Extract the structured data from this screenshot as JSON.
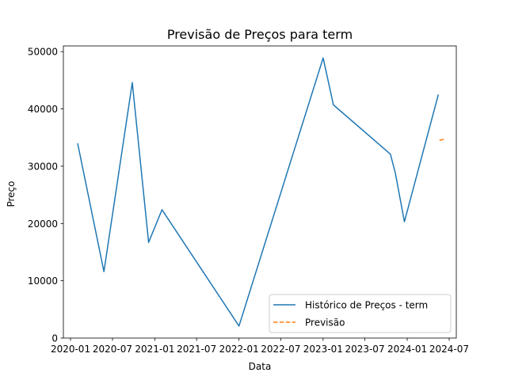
{
  "chart_data": {
    "type": "line",
    "title": "Previsão de Preços para term",
    "xlabel": "Data",
    "ylabel": "Preço",
    "xlim": [
      "2019-12-01",
      "2024-08-01"
    ],
    "ylim": [
      0,
      51000
    ],
    "x_ticks": [
      {
        "date": "2020-01-01",
        "label": "2020-01"
      },
      {
        "date": "2020-07-01",
        "label": "2020-07"
      },
      {
        "date": "2021-01-01",
        "label": "2021-01"
      },
      {
        "date": "2021-07-01",
        "label": "2021-07"
      },
      {
        "date": "2022-01-01",
        "label": "2022-01"
      },
      {
        "date": "2022-07-01",
        "label": "2022-07"
      },
      {
        "date": "2023-01-01",
        "label": "2023-01"
      },
      {
        "date": "2023-07-01",
        "label": "2023-07"
      },
      {
        "date": "2024-01-01",
        "label": "2024-01"
      },
      {
        "date": "2024-07-01",
        "label": "2024-07"
      }
    ],
    "y_ticks": [
      {
        "value": 0,
        "label": "0"
      },
      {
        "value": 10000,
        "label": "10000"
      },
      {
        "value": 20000,
        "label": "20000"
      },
      {
        "value": 30000,
        "label": "30000"
      },
      {
        "value": 40000,
        "label": "40000"
      },
      {
        "value": 50000,
        "label": "50000"
      }
    ],
    "grid": false,
    "legend_position": "lower-right",
    "series": [
      {
        "name": "Histórico de Preços - term",
        "color": "#1f77b4",
        "style": "solid",
        "points": [
          {
            "x": "2020-02-01",
            "y": 34000
          },
          {
            "x": "2020-05-25",
            "y": 11600
          },
          {
            "x": "2020-09-25",
            "y": 44600
          },
          {
            "x": "2020-12-05",
            "y": 16700
          },
          {
            "x": "2021-02-01",
            "y": 22400
          },
          {
            "x": "2022-01-01",
            "y": 2100
          },
          {
            "x": "2023-01-01",
            "y": 48900
          },
          {
            "x": "2023-02-15",
            "y": 40700
          },
          {
            "x": "2023-10-20",
            "y": 32100
          },
          {
            "x": "2023-11-10",
            "y": 28900
          },
          {
            "x": "2023-12-20",
            "y": 20300
          },
          {
            "x": "2024-05-15",
            "y": 42500
          }
        ]
      },
      {
        "name": "Previsão",
        "color": "#ff7f0e",
        "style": "dashed",
        "points": [
          {
            "x": "2024-05-20",
            "y": 34500
          },
          {
            "x": "2024-06-15",
            "y": 34800
          }
        ]
      }
    ]
  }
}
